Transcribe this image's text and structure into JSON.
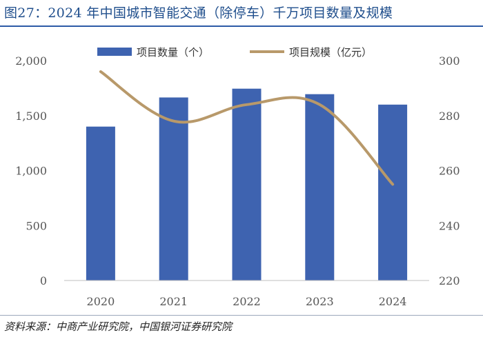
{
  "title": "图27：2024 年中国城市智能交通（除停车）千万项目数量及规模",
  "source": "资料来源：中商产业研究院，中国银河证券研究院",
  "colors": {
    "bar": "#3e63b0",
    "line": "#b8996a",
    "title": "#1f4e8c"
  },
  "chart_data": {
    "type": "bar+line",
    "categories": [
      "2020",
      "2021",
      "2022",
      "2023",
      "2024"
    ],
    "series": [
      {
        "name": "项目数量（个）",
        "type": "bar",
        "axis": "left",
        "values": [
          1400,
          1665,
          1745,
          1695,
          1600
        ]
      },
      {
        "name": "项目规模（亿元）",
        "type": "line",
        "axis": "right",
        "values": [
          296,
          278,
          284,
          284,
          255
        ]
      }
    ],
    "y_left": {
      "min": 0,
      "max": 2000,
      "ticks": [
        "0",
        "500",
        "1,000",
        "1,500",
        "2,000"
      ],
      "tick_values": [
        0,
        500,
        1000,
        1500,
        2000
      ]
    },
    "y_right": {
      "min": 220,
      "max": 300,
      "ticks": [
        "220",
        "240",
        "260",
        "280",
        "300"
      ],
      "tick_values": [
        220,
        240,
        260,
        280,
        300
      ]
    },
    "legend": [
      "项目数量（个）",
      "项目规模（亿元）"
    ],
    "legend_position": "top"
  }
}
